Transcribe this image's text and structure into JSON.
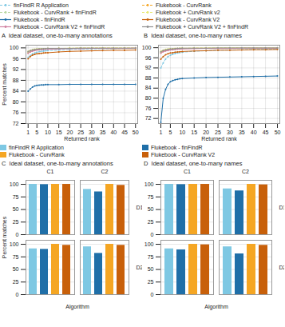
{
  "chart_data": [
    {
      "type": "line",
      "title": "A  Ideal dataset, one-to-many annotations",
      "xlabel": "Returned rank",
      "ylabel": "Percent matches",
      "xlim": [
        0,
        51
      ],
      "ylim": [
        72,
        101
      ],
      "xticks": [
        1,
        5,
        10,
        15,
        20,
        25,
        30,
        35,
        40,
        45,
        50
      ],
      "yticks": [
        72,
        76,
        80,
        84,
        88,
        92,
        96,
        100
      ],
      "grid": true,
      "legend": "top",
      "marker": "circle",
      "x": [
        1,
        2,
        3,
        4,
        5,
        6,
        7,
        8,
        9,
        10,
        15,
        20,
        25,
        30,
        35,
        40,
        45,
        50
      ],
      "series": [
        {
          "name": "finFindR R Application",
          "color": "#7EC8E3",
          "line_style": "dashed",
          "values": [
            96.5,
            97.2,
            97.8,
            98.1,
            98.4,
            98.6,
            98.7,
            98.8,
            98.9,
            99.0,
            99.2,
            99.4,
            99.5,
            99.6,
            99.7,
            99.7,
            99.8,
            99.8
          ]
        },
        {
          "name": "Flukebook - CurvRank",
          "color": "#F5A623",
          "line_style": "dashed",
          "values": [
            98.2,
            98.8,
            99.1,
            99.3,
            99.4,
            99.5,
            99.6,
            99.6,
            99.7,
            99.7,
            99.8,
            99.8,
            99.9,
            99.9,
            99.9,
            99.9,
            99.9,
            99.9
          ]
        },
        {
          "name": "Flukebook - CurvRank + finFindR",
          "color": "#B8D8A0",
          "line_style": "dashed",
          "values": [
            98.5,
            99.0,
            99.2,
            99.4,
            99.5,
            99.5,
            99.6,
            99.7,
            99.7,
            99.7,
            99.8,
            99.8,
            99.9,
            99.9,
            99.9,
            99.9,
            99.9,
            99.9
          ]
        },
        {
          "name": "Flukebook + CurvRank v2",
          "color": "#E8E870",
          "line_style": "dashed",
          "values": [
            98.7,
            99.1,
            99.3,
            99.5,
            99.6,
            99.6,
            99.7,
            99.7,
            99.7,
            99.8,
            99.8,
            99.9,
            99.9,
            99.9,
            99.9,
            99.9,
            99.9,
            99.9
          ]
        },
        {
          "name": "Flukebook - finFindR",
          "color": "#1F6FA8",
          "line_style": "solid",
          "values": [
            84.0,
            84.8,
            85.5,
            85.9,
            86.1,
            86.2,
            86.3,
            86.3,
            86.4,
            86.4,
            86.4,
            86.5,
            86.5,
            86.5,
            86.5,
            86.5,
            86.5,
            86.5
          ]
        },
        {
          "name": "Flukebook - CurvRank V2",
          "color": "#C8600A",
          "line_style": "solid",
          "values": [
            96.0,
            96.8,
            97.3,
            97.6,
            97.8,
            97.9,
            98.0,
            98.1,
            98.2,
            98.2,
            98.5,
            98.7,
            98.8,
            98.9,
            99.0,
            99.1,
            99.1,
            99.2
          ]
        },
        {
          "name": "Flukebook - CurvRank V2 + finFindR",
          "color": "#D080A0",
          "line_style": "solid",
          "values": [
            98.0,
            98.5,
            98.8,
            99.0,
            99.2,
            99.3,
            99.4,
            99.4,
            99.5,
            99.5,
            99.6,
            99.7,
            99.7,
            99.8,
            99.8,
            99.8,
            99.8,
            99.9
          ]
        },
        {
          "name": "Flukebook + CurvRank V2 + finFindR",
          "color": "#909090",
          "line_style": "solid",
          "values": [
            98.6,
            99.0,
            99.2,
            99.4,
            99.5,
            99.6,
            99.6,
            99.7,
            99.7,
            99.8,
            99.8,
            99.8,
            99.9,
            99.9,
            99.9,
            99.9,
            99.9,
            99.9
          ]
        }
      ]
    },
    {
      "type": "line",
      "title": "B  Ideal dataset, one-to-many names",
      "xlabel": "Returned rank",
      "xlim": [
        0,
        51
      ],
      "ylim": [
        70,
        101
      ],
      "xticks": [
        1,
        5,
        10,
        15,
        20,
        25,
        30,
        35,
        40,
        45,
        50
      ],
      "yticks": [
        72,
        76,
        80,
        84,
        88,
        92,
        96,
        100
      ],
      "grid": true,
      "legend": "top",
      "marker": "circle",
      "x": [
        1,
        2,
        3,
        4,
        5,
        6,
        7,
        8,
        9,
        10,
        15,
        20,
        25,
        30,
        35,
        40,
        45,
        50
      ],
      "series": [
        {
          "name": "finFindR R Application",
          "color": "#7EC8E3",
          "line_style": "dashed",
          "values": [
            92.0,
            94.0,
            95.5,
            96.5,
            97.0,
            97.4,
            97.7,
            97.9,
            98.1,
            98.2,
            98.6,
            98.8,
            99.0,
            99.1,
            99.2,
            99.3,
            99.4,
            99.4
          ]
        },
        {
          "name": "Flukebook - CurvRank",
          "color": "#F5A623",
          "line_style": "dashed",
          "values": [
            98.0,
            98.7,
            99.0,
            99.2,
            99.4,
            99.5,
            99.5,
            99.6,
            99.6,
            99.7,
            99.8,
            99.8,
            99.8,
            99.9,
            99.9,
            99.9,
            99.9,
            99.9
          ]
        },
        {
          "name": "Flukebook - CurvRank + finFindR",
          "color": "#B8D8A0",
          "line_style": "dashed",
          "values": [
            98.3,
            98.9,
            99.1,
            99.3,
            99.5,
            99.5,
            99.6,
            99.6,
            99.7,
            99.7,
            99.8,
            99.8,
            99.9,
            99.9,
            99.9,
            99.9,
            99.9,
            99.9
          ]
        },
        {
          "name": "Flukebook + CurvRank v2",
          "color": "#E8E870",
          "line_style": "dashed",
          "values": [
            98.6,
            99.0,
            99.3,
            99.5,
            99.6,
            99.6,
            99.7,
            99.7,
            99.8,
            99.8,
            99.8,
            99.9,
            99.9,
            99.9,
            99.9,
            99.9,
            99.9,
            99.9
          ]
        },
        {
          "name": "Flukebook - finFindR",
          "color": "#1F6FA8",
          "line_style": "solid",
          "values": [
            70.5,
            80.0,
            83.5,
            85.5,
            86.5,
            87.0,
            87.3,
            87.5,
            87.7,
            87.8,
            88.0,
            88.2,
            88.3,
            88.4,
            88.5,
            88.6,
            88.7,
            88.8
          ]
        },
        {
          "name": "Flukebook - CurvRank V2",
          "color": "#C8600A",
          "line_style": "solid",
          "values": [
            95.5,
            96.5,
            97.2,
            97.6,
            97.9,
            98.0,
            98.2,
            98.3,
            98.4,
            98.5,
            98.7,
            98.8,
            99.0,
            99.0,
            99.1,
            99.2,
            99.2,
            99.3
          ]
        },
        {
          "name": "Flukebook - CurvRank V2 + finFindR",
          "color": "#D080A0",
          "line_style": "solid",
          "values": [
            97.8,
            98.4,
            98.7,
            98.9,
            99.1,
            99.2,
            99.3,
            99.4,
            99.5,
            99.5,
            99.6,
            99.7,
            99.7,
            99.7,
            99.8,
            99.8,
            99.8,
            99.8
          ]
        },
        {
          "name": "Flukebook + CurvRank V2 + finFindR",
          "color": "#909090",
          "line_style": "solid",
          "values": [
            98.4,
            98.9,
            99.1,
            99.3,
            99.5,
            99.5,
            99.6,
            99.7,
            99.7,
            99.8,
            99.8,
            99.8,
            99.9,
            99.9,
            99.9,
            99.9,
            99.9,
            99.9
          ]
        }
      ]
    },
    {
      "type": "bar",
      "title": "C  Ideal dataset, one-to-many annotations",
      "xlabel": "Algorithm",
      "ylabel": "Percent matches",
      "ylim": [
        0,
        108
      ],
      "yticks": [
        0,
        25,
        50,
        75,
        100
      ],
      "grid": "y",
      "legend": "top",
      "tick_labels": "y",
      "facets": [
        {
          "column": "C1",
          "row": "D1"
        },
        {
          "column": "C2",
          "row": "D1"
        },
        {
          "column": "C1",
          "row": "D2"
        },
        {
          "column": "C2",
          "row": "D2"
        }
      ],
      "series": [
        {
          "name": "finFindR R Application",
          "color": "#7EC8E3",
          "values": [
            100,
            90,
            91,
            95
          ]
        },
        {
          "name": "Flukebook - finFindR",
          "color": "#1F6FA8",
          "values": [
            99.5,
            85,
            90,
            82
          ]
        },
        {
          "name": "Flukebook - CurvRank",
          "color": "#F5A623",
          "values": [
            100,
            100,
            100,
            100
          ]
        },
        {
          "name": "Flukebook - CurvRank V2",
          "color": "#C8600A",
          "values": [
            100,
            98,
            98,
            98
          ]
        }
      ]
    },
    {
      "type": "bar",
      "title": "D  Ideal dataset, one-to-many names",
      "xlabel": "Algorithm",
      "ylim": [
        0,
        108
      ],
      "yticks": [
        0,
        25,
        50,
        75,
        100
      ],
      "grid": "y",
      "legend": "top",
      "tick_labels": "y",
      "facets": [
        {
          "column": "C1",
          "row": "D1"
        },
        {
          "column": "C2",
          "row": "D1"
        },
        {
          "column": "C1",
          "row": "D2"
        },
        {
          "column": "C2",
          "row": "D2"
        }
      ],
      "series": [
        {
          "name": "finFindR R Application",
          "color": "#7EC8E3",
          "values": [
            100,
            91,
            91,
            95
          ]
        },
        {
          "name": "Flukebook - finFindR",
          "color": "#1F6FA8",
          "values": [
            99.5,
            87,
            89,
            81
          ]
        },
        {
          "name": "Flukebook - CurvRank",
          "color": "#F5A623",
          "values": [
            100,
            100,
            100,
            100
          ]
        },
        {
          "name": "Flukebook - CurvRank V2",
          "color": "#C8600A",
          "values": [
            100,
            99,
            99,
            98
          ]
        }
      ]
    }
  ]
}
